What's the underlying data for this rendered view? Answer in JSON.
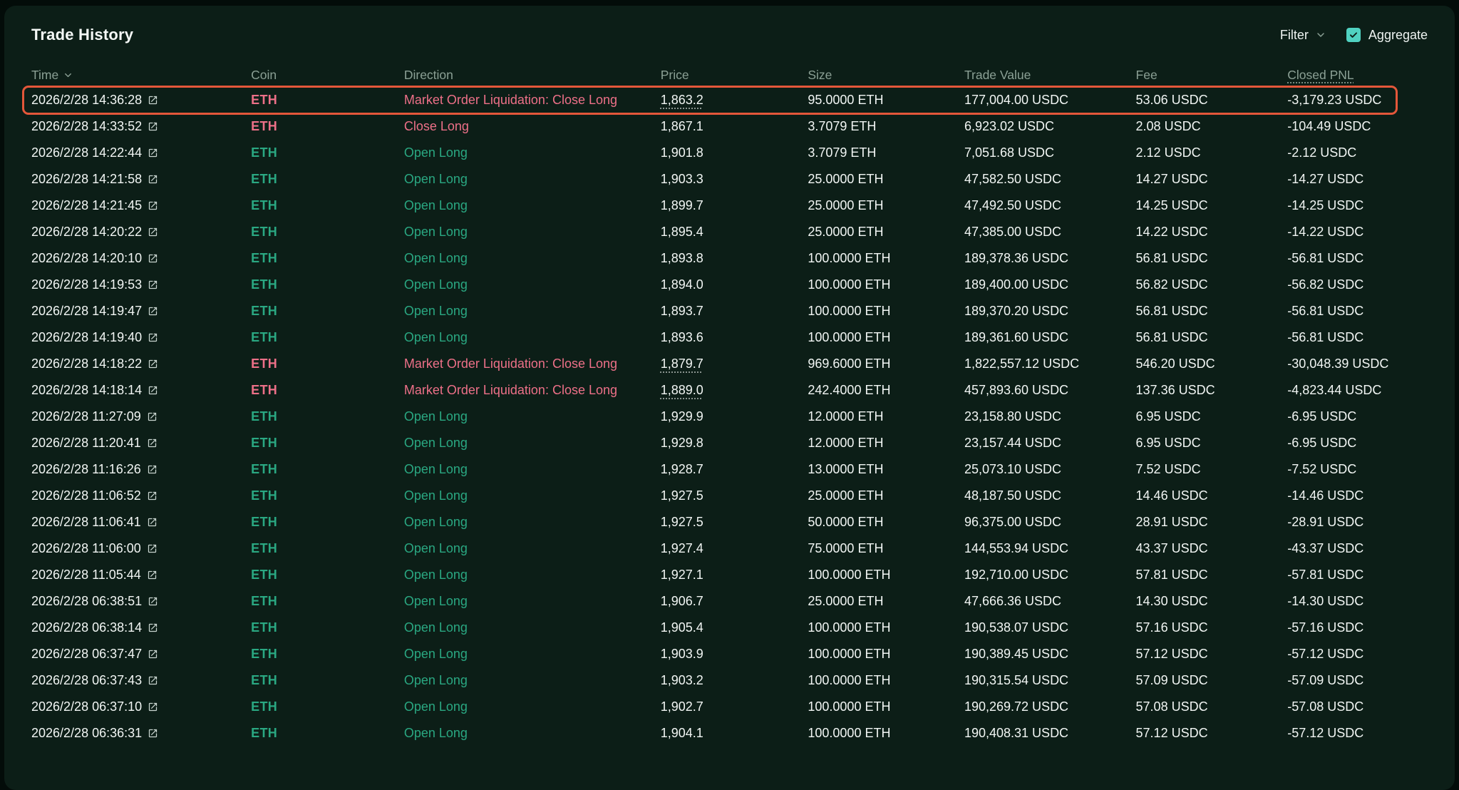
{
  "title": "Trade History",
  "toolbar": {
    "filter_label": "Filter",
    "aggregate_label": "Aggregate",
    "aggregate_checked": true
  },
  "colors": {
    "long_green": "#2aa882",
    "close_red": "#ed7088",
    "highlight_border": "#e4573a",
    "accent_teal": "#50d2c1",
    "panel_bg": "#0c1e17"
  },
  "table": {
    "columns": [
      {
        "key": "time",
        "label": "Time",
        "sortable": true
      },
      {
        "key": "coin",
        "label": "Coin"
      },
      {
        "key": "direction",
        "label": "Direction"
      },
      {
        "key": "price",
        "label": "Price"
      },
      {
        "key": "size",
        "label": "Size"
      },
      {
        "key": "tradeValue",
        "label": "Trade Value"
      },
      {
        "key": "fee",
        "label": "Fee"
      },
      {
        "key": "closedPnl",
        "label": "Closed PNL",
        "underlined": true
      }
    ],
    "rows": [
      {
        "time": "2026/2/28 14:36:28",
        "coin": "ETH",
        "direction": "Market Order Liquidation: Close Long",
        "side": "sell",
        "price": "1,863.2",
        "price_underlined": true,
        "size": "95.0000 ETH",
        "trade_value": "177,004.00 USDC",
        "fee": "53.06 USDC",
        "closed_pnl": "-3,179.23 USDC",
        "highlighted": true
      },
      {
        "time": "2026/2/28 14:33:52",
        "coin": "ETH",
        "direction": "Close Long",
        "side": "sell",
        "price": "1,867.1",
        "price_underlined": false,
        "size": "3.7079 ETH",
        "trade_value": "6,923.02 USDC",
        "fee": "2.08 USDC",
        "closed_pnl": "-104.49 USDC",
        "highlighted": false
      },
      {
        "time": "2026/2/28 14:22:44",
        "coin": "ETH",
        "direction": "Open Long",
        "side": "buy",
        "price": "1,901.8",
        "price_underlined": false,
        "size": "3.7079 ETH",
        "trade_value": "7,051.68 USDC",
        "fee": "2.12 USDC",
        "closed_pnl": "-2.12 USDC",
        "highlighted": false
      },
      {
        "time": "2026/2/28 14:21:58",
        "coin": "ETH",
        "direction": "Open Long",
        "side": "buy",
        "price": "1,903.3",
        "price_underlined": false,
        "size": "25.0000 ETH",
        "trade_value": "47,582.50 USDC",
        "fee": "14.27 USDC",
        "closed_pnl": "-14.27 USDC",
        "highlighted": false
      },
      {
        "time": "2026/2/28 14:21:45",
        "coin": "ETH",
        "direction": "Open Long",
        "side": "buy",
        "price": "1,899.7",
        "price_underlined": false,
        "size": "25.0000 ETH",
        "trade_value": "47,492.50 USDC",
        "fee": "14.25 USDC",
        "closed_pnl": "-14.25 USDC",
        "highlighted": false
      },
      {
        "time": "2026/2/28 14:20:22",
        "coin": "ETH",
        "direction": "Open Long",
        "side": "buy",
        "price": "1,895.4",
        "price_underlined": false,
        "size": "25.0000 ETH",
        "trade_value": "47,385.00 USDC",
        "fee": "14.22 USDC",
        "closed_pnl": "-14.22 USDC",
        "highlighted": false
      },
      {
        "time": "2026/2/28 14:20:10",
        "coin": "ETH",
        "direction": "Open Long",
        "side": "buy",
        "price": "1,893.8",
        "price_underlined": false,
        "size": "100.0000 ETH",
        "trade_value": "189,378.36 USDC",
        "fee": "56.81 USDC",
        "closed_pnl": "-56.81 USDC",
        "highlighted": false
      },
      {
        "time": "2026/2/28 14:19:53",
        "coin": "ETH",
        "direction": "Open Long",
        "side": "buy",
        "price": "1,894.0",
        "price_underlined": false,
        "size": "100.0000 ETH",
        "trade_value": "189,400.00 USDC",
        "fee": "56.82 USDC",
        "closed_pnl": "-56.82 USDC",
        "highlighted": false
      },
      {
        "time": "2026/2/28 14:19:47",
        "coin": "ETH",
        "direction": "Open Long",
        "side": "buy",
        "price": "1,893.7",
        "price_underlined": false,
        "size": "100.0000 ETH",
        "trade_value": "189,370.20 USDC",
        "fee": "56.81 USDC",
        "closed_pnl": "-56.81 USDC",
        "highlighted": false
      },
      {
        "time": "2026/2/28 14:19:40",
        "coin": "ETH",
        "direction": "Open Long",
        "side": "buy",
        "price": "1,893.6",
        "price_underlined": false,
        "size": "100.0000 ETH",
        "trade_value": "189,361.60 USDC",
        "fee": "56.81 USDC",
        "closed_pnl": "-56.81 USDC",
        "highlighted": false
      },
      {
        "time": "2026/2/28 14:18:22",
        "coin": "ETH",
        "direction": "Market Order Liquidation: Close Long",
        "side": "sell",
        "price": "1,879.7",
        "price_underlined": true,
        "size": "969.6000 ETH",
        "trade_value": "1,822,557.12 USDC",
        "fee": "546.20 USDC",
        "closed_pnl": "-30,048.39 USDC",
        "highlighted": false
      },
      {
        "time": "2026/2/28 14:18:14",
        "coin": "ETH",
        "direction": "Market Order Liquidation: Close Long",
        "side": "sell",
        "price": "1,889.0",
        "price_underlined": true,
        "size": "242.4000 ETH",
        "trade_value": "457,893.60 USDC",
        "fee": "137.36 USDC",
        "closed_pnl": "-4,823.44 USDC",
        "highlighted": false
      },
      {
        "time": "2026/2/28 11:27:09",
        "coin": "ETH",
        "direction": "Open Long",
        "side": "buy",
        "price": "1,929.9",
        "price_underlined": false,
        "size": "12.0000 ETH",
        "trade_value": "23,158.80 USDC",
        "fee": "6.95 USDC",
        "closed_pnl": "-6.95 USDC",
        "highlighted": false
      },
      {
        "time": "2026/2/28 11:20:41",
        "coin": "ETH",
        "direction": "Open Long",
        "side": "buy",
        "price": "1,929.8",
        "price_underlined": false,
        "size": "12.0000 ETH",
        "trade_value": "23,157.44 USDC",
        "fee": "6.95 USDC",
        "closed_pnl": "-6.95 USDC",
        "highlighted": false
      },
      {
        "time": "2026/2/28 11:16:26",
        "coin": "ETH",
        "direction": "Open Long",
        "side": "buy",
        "price": "1,928.7",
        "price_underlined": false,
        "size": "13.0000 ETH",
        "trade_value": "25,073.10 USDC",
        "fee": "7.52 USDC",
        "closed_pnl": "-7.52 USDC",
        "highlighted": false
      },
      {
        "time": "2026/2/28 11:06:52",
        "coin": "ETH",
        "direction": "Open Long",
        "side": "buy",
        "price": "1,927.5",
        "price_underlined": false,
        "size": "25.0000 ETH",
        "trade_value": "48,187.50 USDC",
        "fee": "14.46 USDC",
        "closed_pnl": "-14.46 USDC",
        "highlighted": false
      },
      {
        "time": "2026/2/28 11:06:41",
        "coin": "ETH",
        "direction": "Open Long",
        "side": "buy",
        "price": "1,927.5",
        "price_underlined": false,
        "size": "50.0000 ETH",
        "trade_value": "96,375.00 USDC",
        "fee": "28.91 USDC",
        "closed_pnl": "-28.91 USDC",
        "highlighted": false
      },
      {
        "time": "2026/2/28 11:06:00",
        "coin": "ETH",
        "direction": "Open Long",
        "side": "buy",
        "price": "1,927.4",
        "price_underlined": false,
        "size": "75.0000 ETH",
        "trade_value": "144,553.94 USDC",
        "fee": "43.37 USDC",
        "closed_pnl": "-43.37 USDC",
        "highlighted": false
      },
      {
        "time": "2026/2/28 11:05:44",
        "coin": "ETH",
        "direction": "Open Long",
        "side": "buy",
        "price": "1,927.1",
        "price_underlined": false,
        "size": "100.0000 ETH",
        "trade_value": "192,710.00 USDC",
        "fee": "57.81 USDC",
        "closed_pnl": "-57.81 USDC",
        "highlighted": false
      },
      {
        "time": "2026/2/28 06:38:51",
        "coin": "ETH",
        "direction": "Open Long",
        "side": "buy",
        "price": "1,906.7",
        "price_underlined": false,
        "size": "25.0000 ETH",
        "trade_value": "47,666.36 USDC",
        "fee": "14.30 USDC",
        "closed_pnl": "-14.30 USDC",
        "highlighted": false
      },
      {
        "time": "2026/2/28 06:38:14",
        "coin": "ETH",
        "direction": "Open Long",
        "side": "buy",
        "price": "1,905.4",
        "price_underlined": false,
        "size": "100.0000 ETH",
        "trade_value": "190,538.07 USDC",
        "fee": "57.16 USDC",
        "closed_pnl": "-57.16 USDC",
        "highlighted": false
      },
      {
        "time": "2026/2/28 06:37:47",
        "coin": "ETH",
        "direction": "Open Long",
        "side": "buy",
        "price": "1,903.9",
        "price_underlined": false,
        "size": "100.0000 ETH",
        "trade_value": "190,389.45 USDC",
        "fee": "57.12 USDC",
        "closed_pnl": "-57.12 USDC",
        "highlighted": false
      },
      {
        "time": "2026/2/28 06:37:43",
        "coin": "ETH",
        "direction": "Open Long",
        "side": "buy",
        "price": "1,903.2",
        "price_underlined": false,
        "size": "100.0000 ETH",
        "trade_value": "190,315.54 USDC",
        "fee": "57.09 USDC",
        "closed_pnl": "-57.09 USDC",
        "highlighted": false
      },
      {
        "time": "2026/2/28 06:37:10",
        "coin": "ETH",
        "direction": "Open Long",
        "side": "buy",
        "price": "1,902.7",
        "price_underlined": false,
        "size": "100.0000 ETH",
        "trade_value": "190,269.72 USDC",
        "fee": "57.08 USDC",
        "closed_pnl": "-57.08 USDC",
        "highlighted": false
      },
      {
        "time": "2026/2/28 06:36:31",
        "coin": "ETH",
        "direction": "Open Long",
        "side": "buy",
        "price": "1,904.1",
        "price_underlined": false,
        "size": "100.0000 ETH",
        "trade_value": "190,408.31 USDC",
        "fee": "57.12 USDC",
        "closed_pnl": "-57.12 USDC",
        "highlighted": false
      }
    ]
  }
}
